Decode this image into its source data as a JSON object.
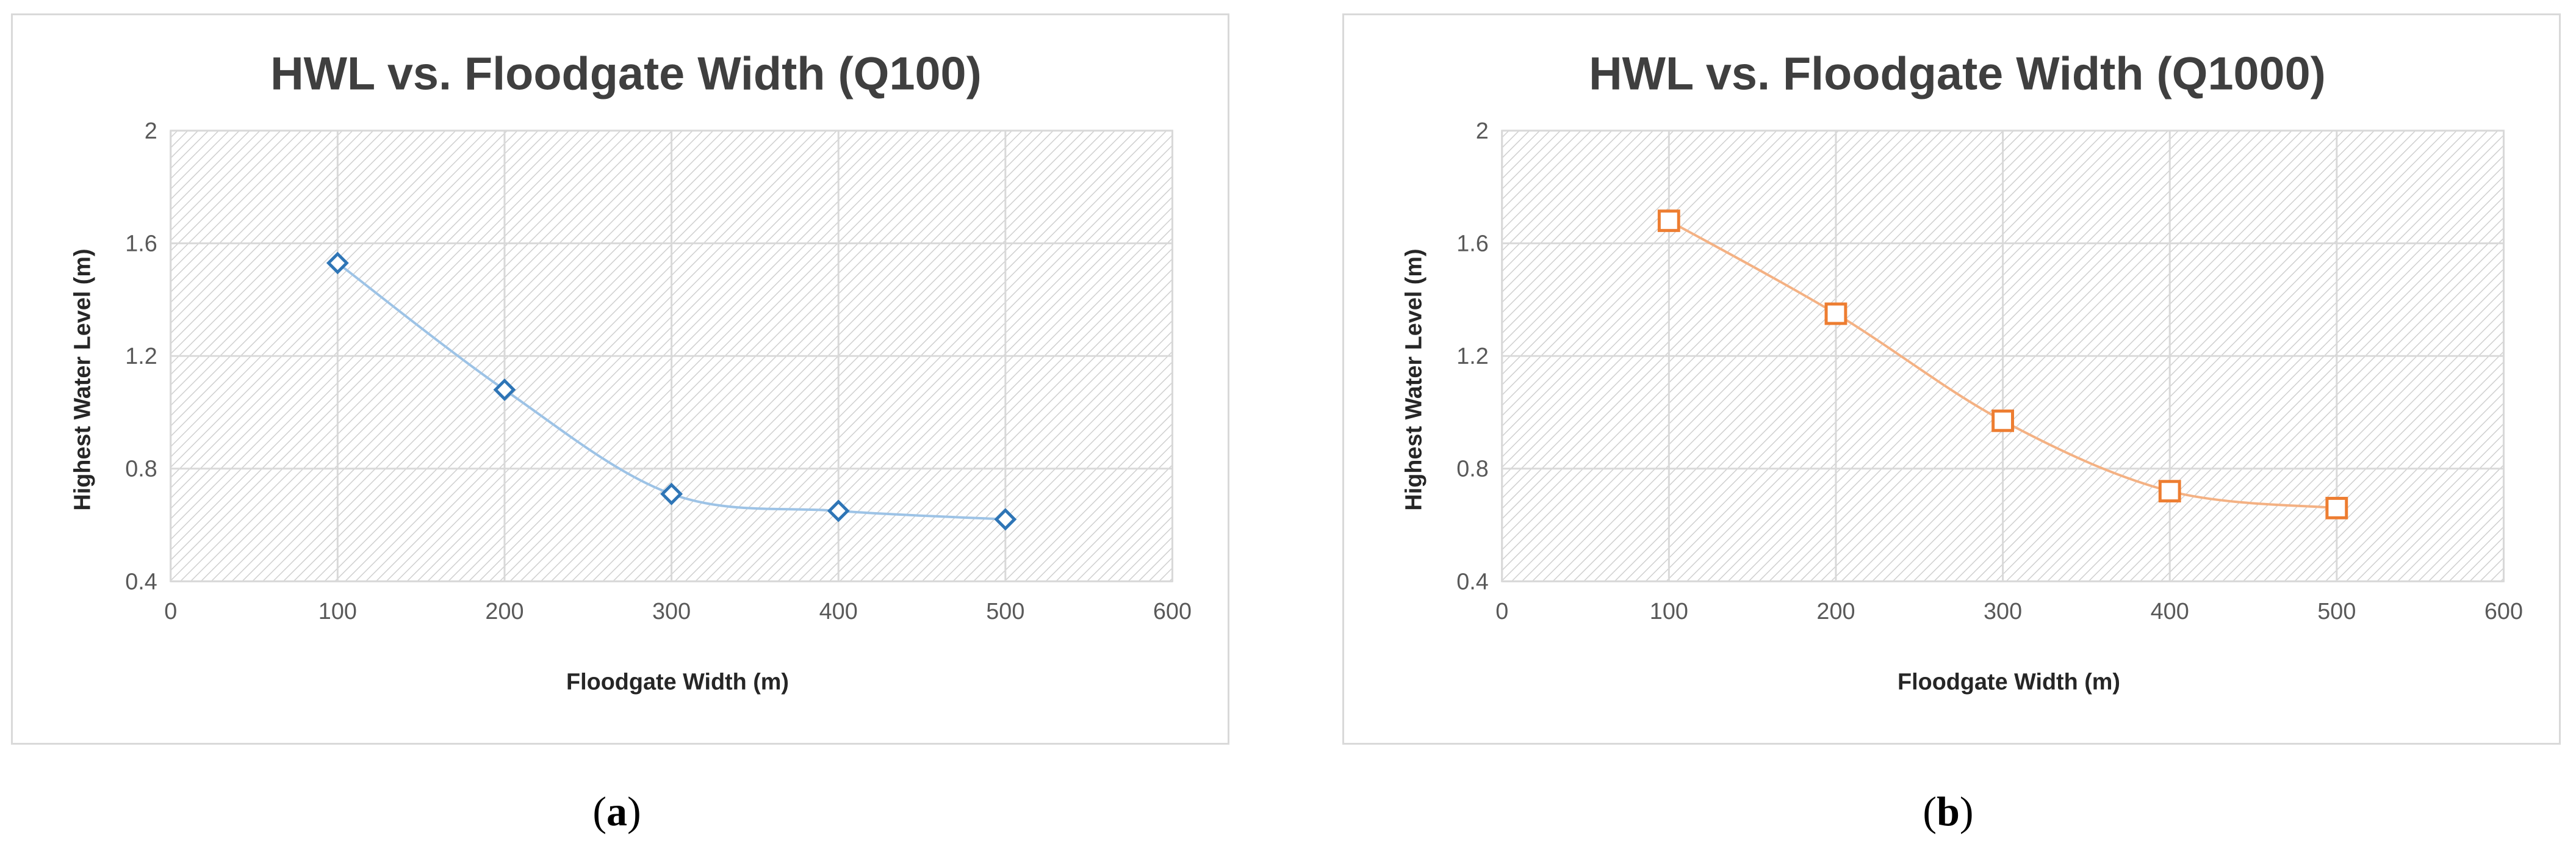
{
  "chart_data": [
    {
      "type": "line",
      "title": "HWL vs. Floodgate Width (Q100)",
      "xlabel": "Floodgate Width (m)",
      "ylabel": "Highest Water Level (m)",
      "xlim": [
        0,
        600
      ],
      "ylim": [
        0.4,
        2
      ],
      "xticks": [
        "0",
        "100",
        "200",
        "300",
        "400",
        "500",
        "600"
      ],
      "yticks": [
        "0.4",
        "0.8",
        "1.2",
        "1.6",
        "2"
      ],
      "grid": true,
      "series": [
        {
          "x": [
            100,
            200,
            300,
            400,
            500
          ],
          "y": [
            1.53,
            1.08,
            0.71,
            0.65,
            0.62
          ],
          "color": "#2e75b6",
          "marker": "diamond",
          "smooth": true
        }
      ]
    },
    {
      "type": "line",
      "title": "HWL vs. Floodgate Width (Q1000)",
      "xlabel": "Floodgate Width (m)",
      "ylabel": "Highest Water Level (m)",
      "xlim": [
        0,
        600
      ],
      "ylim": [
        0.4,
        2
      ],
      "xticks": [
        "0",
        "100",
        "200",
        "300",
        "400",
        "500",
        "600"
      ],
      "yticks": [
        "0.4",
        "0.8",
        "1.2",
        "1.6",
        "2"
      ],
      "grid": true,
      "series": [
        {
          "x": [
            100,
            200,
            300,
            400,
            500
          ],
          "y": [
            1.68,
            1.35,
            0.97,
            0.72,
            0.66
          ],
          "color": "#f4b183",
          "marker_color": "#ed7d31",
          "marker": "square",
          "smooth": true
        }
      ]
    }
  ],
  "captions": {
    "a": "a",
    "b": "b"
  }
}
